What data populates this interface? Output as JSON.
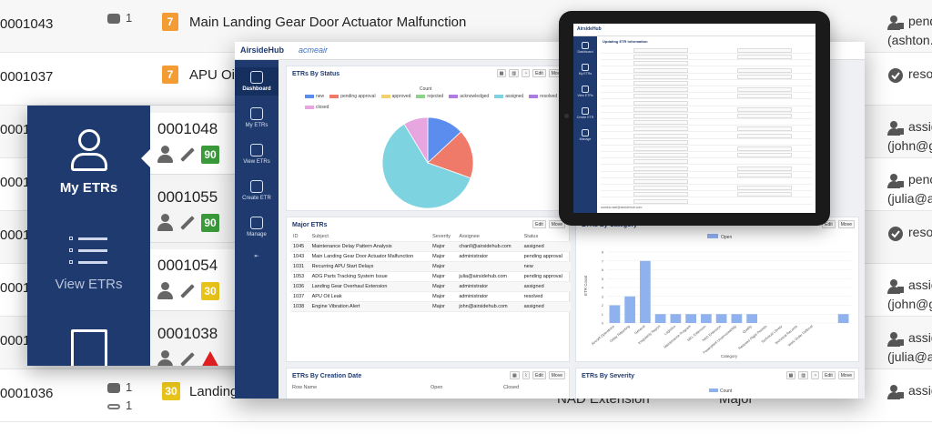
{
  "background": {
    "rows": [
      {
        "id": "0001043",
        "comments": "1",
        "badge": "7",
        "badge_color": "#f39c34",
        "subject": "Main Landing Gear Door Actuator Malfunction",
        "status": "pend",
        "status_sub": "(ashton.",
        "status_icon": "pending-user-icon"
      },
      {
        "id": "0001037",
        "comments": "",
        "badge": "7",
        "badge_color": "#f39c34",
        "subject": "APU Oil L",
        "status": "resol",
        "status_sub": "",
        "status_icon": "check-circle-icon"
      },
      {
        "id": "000101",
        "comments": "",
        "badge": "",
        "badge_color": "",
        "subject": "",
        "status": "assig",
        "status_sub": "(john@g",
        "status_icon": "assign-user-icon"
      },
      {
        "id": "000101",
        "comments": "",
        "badge": "",
        "badge_color": "",
        "subject": "",
        "status": "penc",
        "status_sub": "(julia@a",
        "status_icon": "pending-user-icon"
      },
      {
        "id": "000101",
        "comments": "",
        "badge": "",
        "badge_color": "",
        "subject": "",
        "status": "resol",
        "status_sub": "",
        "status_icon": "check-circle-icon"
      },
      {
        "id": "000101",
        "comments": "",
        "badge": "",
        "badge_color": "",
        "subject": "",
        "status": "assig",
        "status_sub": "(john@g",
        "status_icon": "assign-user-icon"
      },
      {
        "id": "000101",
        "comments": "",
        "badge": "",
        "badge_color": "",
        "subject": "",
        "status": "assig",
        "status_sub": "(julia@a",
        "status_icon": "assign-user-icon"
      },
      {
        "id": "0001036",
        "comments": "1",
        "attachments": "1",
        "badge": "30",
        "badge_color": "#e8c31a",
        "subject": "Landing Gear Overhaul Extension",
        "status": "assig",
        "status_sub": "",
        "status_icon": "assign-user-icon"
      }
    ],
    "mid_text_1": "NAD Extension",
    "mid_text_2": "Major"
  },
  "mobile": {
    "nav": {
      "my_etrs": "My ETRs",
      "view_etrs": "View ETRs"
    },
    "cards": [
      {
        "id": "0001048",
        "badge": "90",
        "badge_color": "#3a9a3a",
        "warn": false
      },
      {
        "id": "0001055",
        "badge": "90",
        "badge_color": "#3a9a3a",
        "warn": false
      },
      {
        "id": "0001054",
        "badge": "30",
        "badge_color": "#e8c31a",
        "warn": false
      },
      {
        "id": "0001038",
        "badge": "",
        "badge_color": "",
        "warn": true
      }
    ]
  },
  "desktop": {
    "brand": "AirsideHub",
    "brand2": "acmeair",
    "nav": [
      "Dashboard",
      "My ETRs",
      "View ETRs",
      "Create ETR",
      "Manage"
    ],
    "status_card": {
      "title": "ETRs By Status",
      "edit": "Edit",
      "move": "Move",
      "legend_title": "Count",
      "legend": [
        {
          "label": "new",
          "color": "#5b8def"
        },
        {
          "label": "pending approval",
          "color": "#f07a6a"
        },
        {
          "label": "approved",
          "color": "#f2d36b"
        },
        {
          "label": "rejected",
          "color": "#8ed18b"
        },
        {
          "label": "acknowledged",
          "color": "#b07be0"
        },
        {
          "label": "assigned",
          "color": "#7ed3e0"
        },
        {
          "label": "resolved",
          "color": "#a77ee0"
        },
        {
          "label": "closed",
          "color": "#e8a6e0"
        }
      ]
    },
    "major_card": {
      "title": "Major ETRs",
      "edit": "Edit",
      "move": "Move",
      "columns": [
        "ID",
        "Subject",
        "Severity",
        "Assignee",
        "Status"
      ],
      "rows": [
        [
          "1045",
          "Maintenance Delay Pattern Analysis",
          "Major",
          "chanll@airsidehub.com",
          "assigned"
        ],
        [
          "1043",
          "Main Landing Gear Door Actuator Malfunction",
          "Major",
          "administrator",
          "pending approval"
        ],
        [
          "1031",
          "Recurring APU Start Delays",
          "Major",
          "",
          "new"
        ],
        [
          "1053",
          "ADG Parts Tracking System Issue",
          "Major",
          "julia@airsidehub.com",
          "pending approval"
        ],
        [
          "1036",
          "Landing Gear Overhaul Extension",
          "Major",
          "administrator",
          "assigned"
        ],
        [
          "1037",
          "APU Oil Leak",
          "Major",
          "administrator",
          "resolved"
        ],
        [
          "1038",
          "Engine Vibration Alert",
          "Major",
          "john@airsidehub.com",
          "assigned"
        ]
      ]
    },
    "category_card": {
      "title": "ETRs By Category",
      "edit": "Edit",
      "move": "Move",
      "legend": "Open",
      "ylabel": "ETR Count",
      "xlabel": "Category"
    },
    "creation_card": {
      "title": "ETRs By Creation Date",
      "edit": "Edit",
      "move": "Move",
      "columns": [
        "Row Name",
        "Open",
        "Closed"
      ]
    },
    "severity_card": {
      "title": "ETRs By Severity",
      "edit": "Edit",
      "move": "Move",
      "legend": "Count",
      "row": "Major"
    }
  },
  "tablet": {
    "brand": "AirsideHub",
    "form_title": "Updating ETR Information",
    "nav": [
      "Dashboard",
      "My ETRs",
      "View ETRs",
      "Create ETR",
      "Manage"
    ],
    "footer": "sandra.rawl@airsidehub.com"
  },
  "chart_data": [
    {
      "type": "pie",
      "title": "ETRs By Status",
      "legend_title": "Count",
      "categories": [
        "new",
        "pending approval",
        "approved",
        "rejected",
        "acknowledged",
        "assigned",
        "resolved",
        "closed"
      ],
      "values": [
        3,
        4,
        0,
        0,
        0,
        14,
        0,
        2
      ]
    },
    {
      "type": "bar",
      "title": "ETRs By Category",
      "series": [
        {
          "name": "Open",
          "values": [
            2,
            3,
            7,
            1,
            1,
            1,
            1,
            1,
            1,
            1,
            0,
            0,
            0,
            0,
            0,
            1
          ]
        }
      ],
      "categories": [
        "Aircraft Operations",
        "Delay Reporting",
        "General",
        "Irregularity Report",
        "Logistics",
        "Maintenance Program",
        "MEL Extension",
        "NAD Extension",
        "Powerplant Unserviceability",
        "Quality",
        "Reduced Flight Permits",
        "Technical Library",
        "Technical Records",
        "Work Order Deferral",
        "",
        ""
      ],
      "xlabel": "Category",
      "ylabel": "ETR Count",
      "ylim": [
        0,
        8
      ]
    }
  ]
}
